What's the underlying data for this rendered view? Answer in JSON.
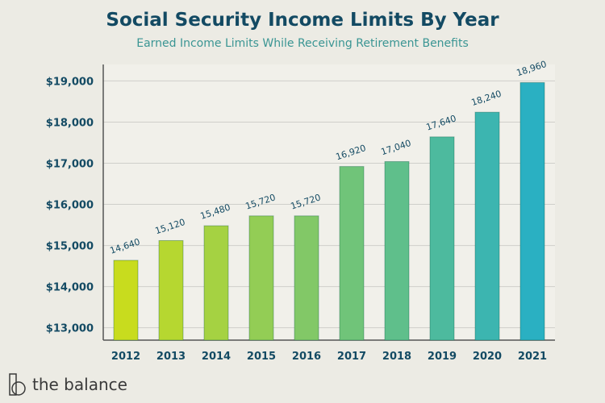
{
  "title": "Social Security Income Limits By Year",
  "subtitle": "Earned Income Limits While Receiving Retirement Benefits",
  "brand": "the balance",
  "chart_data": {
    "type": "bar",
    "title": "Social Security Income Limits By Year",
    "subtitle": "Earned Income Limits While Receiving Retirement Benefits",
    "categories": [
      "2012",
      "2013",
      "2014",
      "2015",
      "2016",
      "2017",
      "2018",
      "2019",
      "2020",
      "2021"
    ],
    "values": [
      14640,
      15120,
      15480,
      15720,
      15720,
      16920,
      17040,
      17640,
      18240,
      18960
    ],
    "data_labels": [
      "14,640",
      "15,120",
      "15,480",
      "15,720",
      "15,720",
      "16,920",
      "17,040",
      "17,640",
      "18,240",
      "18,960"
    ],
    "yticks": [
      13000,
      14000,
      15000,
      16000,
      17000,
      18000,
      19000
    ],
    "ytick_labels": [
      "$13,000",
      "$14,000",
      "$15,000",
      "$16,000",
      "$17,000",
      "$18,000",
      "$19,000"
    ],
    "ylim": [
      12700,
      19400
    ],
    "grid": true,
    "colors": {
      "start": "#c8dc1e",
      "end": "#2ab0c2",
      "text": "#134a63"
    }
  }
}
